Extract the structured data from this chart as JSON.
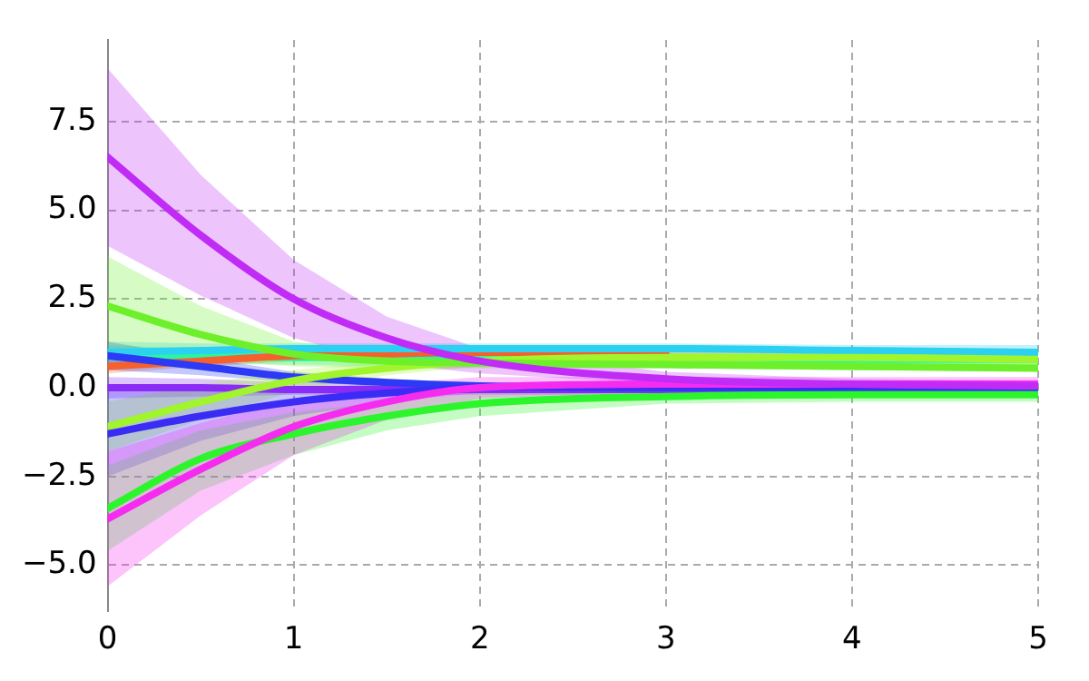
{
  "chart_data": {
    "type": "line",
    "x": [
      0,
      0.5,
      1,
      1.5,
      2,
      3,
      4,
      5
    ],
    "xlim": [
      0,
      5
    ],
    "ylim": [
      -6.3,
      9.8
    ],
    "xticks": [
      0,
      1,
      2,
      3,
      4,
      5
    ],
    "yticks": [
      {
        "value": -5,
        "label": "−5.0"
      },
      {
        "value": -2.5,
        "label": "−2.5"
      },
      {
        "value": 0,
        "label": "0.0"
      },
      {
        "value": 2.5,
        "label": "2.5"
      },
      {
        "value": 5,
        "label": "5.0"
      },
      {
        "value": 7.5,
        "label": "7.5"
      }
    ],
    "grid": true,
    "legend": false,
    "line_style": "solid",
    "marker": "none",
    "series": [
      {
        "color": "#c02cf5",
        "values": [
          6.5,
          4.3,
          2.5,
          1.4,
          0.75,
          0.25,
          0.1,
          0.05
        ],
        "lower": [
          4.0,
          2.6,
          1.4,
          0.7,
          0.4,
          0.1,
          0.0,
          -0.05
        ],
        "upper": [
          9.0,
          6.0,
          3.6,
          2.0,
          1.1,
          0.45,
          0.25,
          0.2
        ]
      },
      {
        "color": "#6df02a",
        "values": [
          2.3,
          1.5,
          0.95,
          0.75,
          0.7,
          0.65,
          0.6,
          0.55
        ],
        "lower": [
          1.0,
          0.8,
          0.6,
          0.55,
          0.55,
          0.55,
          0.5,
          0.45
        ],
        "upper": [
          3.7,
          2.3,
          1.3,
          1.05,
          0.95,
          0.95,
          0.9,
          0.85
        ]
      },
      {
        "color": "#f52cf0",
        "values": [
          -3.7,
          -2.3,
          -1.1,
          -0.4,
          0.0,
          0.1,
          0.1,
          0.1
        ],
        "lower": [
          -5.6,
          -3.6,
          -1.9,
          -0.9,
          -0.3,
          -0.1,
          -0.1,
          -0.1
        ],
        "upper": [
          -1.8,
          -1.0,
          -0.3,
          0.1,
          0.3,
          0.3,
          0.3,
          0.3
        ]
      },
      {
        "color": "#2cf52c",
        "values": [
          -3.4,
          -2.0,
          -1.3,
          -0.8,
          -0.45,
          -0.25,
          -0.2,
          -0.2
        ],
        "lower": [
          -4.6,
          -2.9,
          -1.9,
          -1.2,
          -0.8,
          -0.45,
          -0.4,
          -0.4
        ],
        "upper": [
          -2.2,
          -1.2,
          -0.7,
          -0.4,
          -0.15,
          -0.05,
          0.0,
          0.0
        ]
      },
      {
        "color": "#3a2cf5",
        "values": [
          -1.3,
          -0.8,
          -0.4,
          -0.15,
          0.0,
          0.05,
          0.05,
          0.05
        ],
        "lower": [
          -2.5,
          -1.5,
          -0.8,
          -0.4,
          -0.15,
          -0.05,
          -0.05,
          -0.05
        ],
        "upper": [
          -0.1,
          -0.1,
          0.0,
          0.1,
          0.15,
          0.15,
          0.15,
          0.15
        ]
      },
      {
        "color": "#a0f52c",
        "values": [
          -1.1,
          -0.4,
          0.2,
          0.55,
          0.75,
          0.85,
          0.85,
          0.8
        ],
        "lower": [
          -1.8,
          -0.9,
          -0.1,
          0.35,
          0.6,
          0.7,
          0.7,
          0.65
        ],
        "upper": [
          -0.4,
          0.1,
          0.5,
          0.75,
          0.9,
          1.0,
          1.0,
          0.95
        ]
      },
      {
        "color": "#2c3af5",
        "values": [
          0.9,
          0.6,
          0.3,
          0.15,
          0.05,
          0.0,
          0.0,
          0.0
        ],
        "lower": [
          0.5,
          0.35,
          0.15,
          0.05,
          -0.05,
          -0.1,
          -0.1,
          -0.1
        ],
        "upper": [
          1.3,
          0.85,
          0.45,
          0.25,
          0.15,
          0.1,
          0.1,
          0.1
        ]
      },
      {
        "color": "#2cd0f0",
        "values": [
          1.0,
          1.05,
          1.1,
          1.1,
          1.1,
          1.1,
          1.05,
          1.0
        ],
        "lower": [
          0.7,
          0.85,
          0.95,
          0.95,
          0.95,
          0.95,
          0.9,
          0.85
        ],
        "upper": [
          1.3,
          1.25,
          1.25,
          1.25,
          1.25,
          1.25,
          1.2,
          1.2
        ]
      },
      {
        "color": "#f5602c",
        "values": [
          0.6,
          0.75,
          0.9,
          0.95,
          1.0,
          1.0,
          null,
          null
        ],
        "lower": [
          0.4,
          0.6,
          0.75,
          0.8,
          0.85,
          0.85,
          0.8,
          0.75
        ],
        "upper": [
          0.8,
          0.9,
          1.05,
          1.1,
          1.15,
          1.15,
          1.1,
          1.05
        ]
      },
      {
        "color": "#2cf5a0",
        "values": [
          0.9,
          0.9,
          0.85,
          0.85,
          0.85,
          0.85,
          0.8,
          0.8
        ],
        "lower": [
          0.6,
          0.65,
          0.65,
          0.6,
          0.6,
          0.55,
          0.5,
          0.5
        ],
        "upper": [
          1.2,
          1.1,
          1.05,
          1.0,
          1.0,
          0.95,
          0.9,
          0.85
        ]
      },
      {
        "color": "#8a2cf5",
        "values": [
          0.0,
          0.0,
          -0.05,
          -0.05,
          -0.05,
          -0.05,
          -0.05,
          -0.05
        ],
        "lower": [
          -0.3,
          -0.25,
          -0.2,
          -0.2,
          -0.2,
          -0.2,
          -0.2,
          -0.2
        ],
        "upper": [
          0.3,
          0.25,
          0.15,
          0.1,
          0.1,
          0.1,
          0.1,
          0.1
        ]
      }
    ]
  }
}
